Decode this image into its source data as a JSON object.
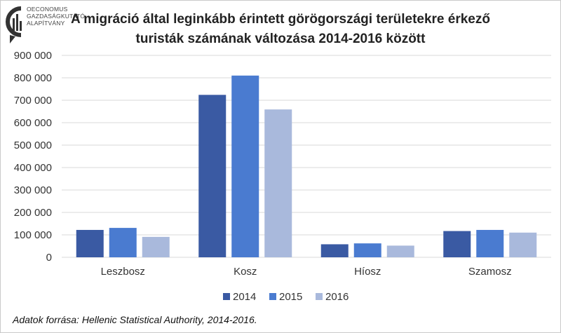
{
  "logo": {
    "lines": [
      "OECONOMUS",
      "GAZDASÁGKUTATÓ",
      "ALAPÍTVÁNY"
    ]
  },
  "chart_data": {
    "type": "bar",
    "title": "A migráció által leginkább érintett görögországi területekre érkező turisták számának változása 2014-2016 között",
    "title_lines": [
      "A migráció által leginkább érintett görögországi területekre érkező",
      "turisták számának változása 2014-2016 között"
    ],
    "categories": [
      "Leszbosz",
      "Kosz",
      "Híosz",
      "Szamosz"
    ],
    "series": [
      {
        "name": "2014",
        "color": "#3a5aa3",
        "values": [
          122000,
          724000,
          58000,
          117000
        ]
      },
      {
        "name": "2015",
        "color": "#4a7bd0",
        "values": [
          131000,
          810000,
          62000,
          122000
        ]
      },
      {
        "name": "2016",
        "color": "#a9b9dc",
        "values": [
          91000,
          659000,
          52000,
          110000
        ]
      }
    ],
    "ylim": [
      0,
      900000
    ],
    "yticks": [
      "0",
      "100 000",
      "200 000",
      "300 000",
      "400 000",
      "500 000",
      "600 000",
      "700 000",
      "800 000",
      "900 000"
    ],
    "grid": true,
    "legend_position": "bottom",
    "xlabel": "",
    "ylabel": ""
  },
  "source": "Adatok forrása: Hellenic Statistical Authority, 2014-2016."
}
